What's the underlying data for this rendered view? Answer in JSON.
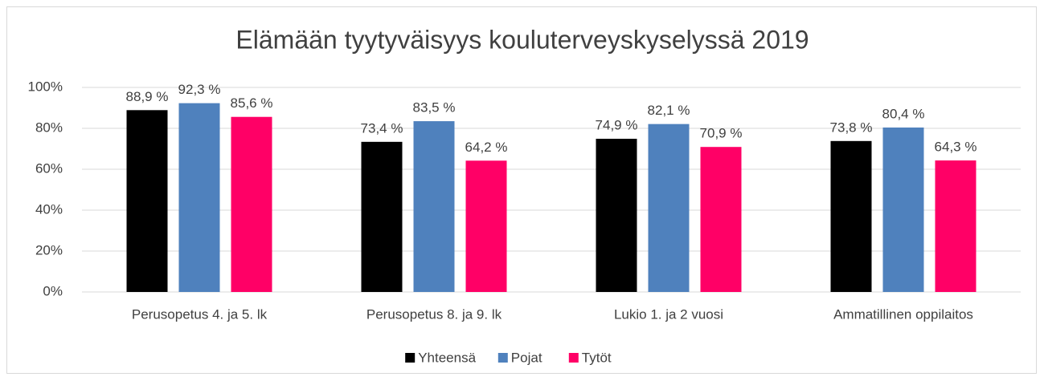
{
  "chart_data": {
    "type": "bar",
    "title": "Elämään tyytyväisyys kouluterveyskyselyssä 2019",
    "categories": [
      "Perusopetus 4. ja 5. lk",
      "Perusopetus 8. ja 9. lk",
      "Lukio 1. ja 2 vuosi",
      "Ammatillinen oppilaitos"
    ],
    "series": [
      {
        "name": "Yhteensä",
        "color": "#000000",
        "values": [
          88.9,
          73.4,
          74.9,
          73.8
        ],
        "value_labels": [
          "88,9 %",
          "73,4 %",
          "74,9 %",
          "73,8 %"
        ]
      },
      {
        "name": "Pojat",
        "color": "#4f81bd",
        "values": [
          92.3,
          83.5,
          82.1,
          80.4
        ],
        "value_labels": [
          "92,3 %",
          "83,5 %",
          "82,1 %",
          "80,4 %"
        ]
      },
      {
        "name": "Tytöt",
        "color": "#ff0066",
        "values": [
          85.6,
          64.2,
          70.9,
          64.3
        ],
        "value_labels": [
          "85,6 %",
          "64,2 %",
          "70,9 %",
          "64,3 %"
        ]
      }
    ],
    "ylim": [
      0,
      100
    ],
    "yticks": [
      {
        "value": 0,
        "label": "0%"
      },
      {
        "value": 20,
        "label": "20%"
      },
      {
        "value": 40,
        "label": "40%"
      },
      {
        "value": 60,
        "label": "60%"
      },
      {
        "value": 80,
        "label": "80%"
      },
      {
        "value": 100,
        "label": "100%"
      }
    ],
    "grid": true,
    "legend": "bottom"
  }
}
